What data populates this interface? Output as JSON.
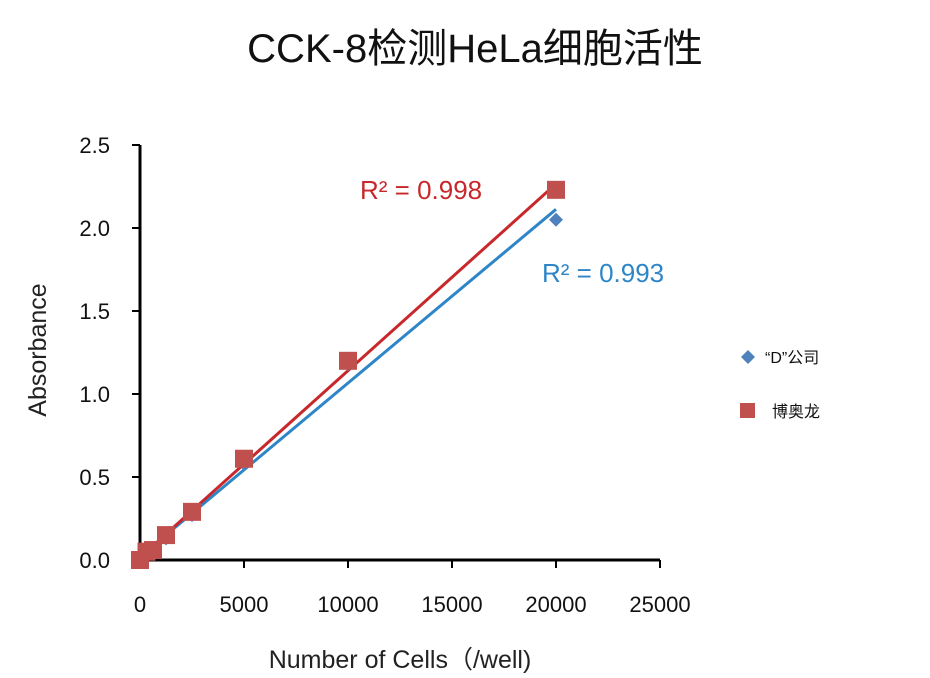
{
  "chart_data": {
    "type": "scatter",
    "title": "CCK-8检测HeLa细胞活性",
    "xlabel": "Number of Cells（/well)",
    "ylabel": "Absorbance",
    "xlim": [
      0,
      25000
    ],
    "ylim": [
      0,
      2.5
    ],
    "xticks": [
      "0",
      "5000",
      "10000",
      "15000",
      "20000",
      "25000"
    ],
    "yticks": [
      "0.0",
      "0.5",
      "1.0",
      "1.5",
      "2.0",
      "2.5"
    ],
    "grid": false,
    "legend_position": "right",
    "series": [
      {
        "name": "“D”公司",
        "marker": "diamond",
        "color": "#4f81bd",
        "trendline_color": "#2e86c8",
        "r2_label": "R² = 0.993",
        "x": [
          0,
          312,
          625,
          1250,
          2500,
          5000,
          10000,
          20000
        ],
        "y": [
          0.0,
          0.04,
          0.06,
          0.13,
          0.27,
          0.58,
          1.18,
          2.05
        ]
      },
      {
        "name": "博奥龙",
        "marker": "square",
        "color": "#c0504d",
        "trendline_color": "#c8282b",
        "r2_label": "R² = 0.998",
        "x": [
          0,
          312,
          625,
          1250,
          2500,
          5000,
          10000,
          20000
        ],
        "y": [
          0.0,
          0.05,
          0.06,
          0.15,
          0.29,
          0.61,
          1.2,
          2.23
        ]
      }
    ]
  }
}
